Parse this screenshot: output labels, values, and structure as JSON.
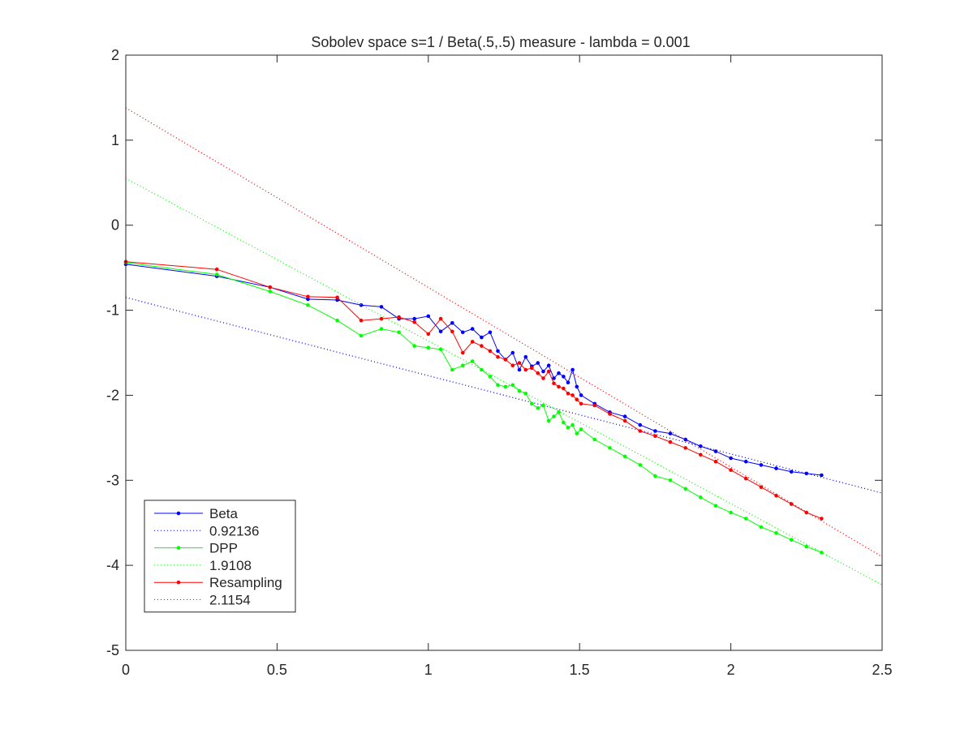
{
  "figure": {
    "background": "#ffffff",
    "axes_color": "#262626"
  },
  "chart_data": {
    "type": "line",
    "title": "Sobolev space s=1 / Beta(.5,.5) measure - lambda = 0.001",
    "xlabel": "",
    "ylabel": "",
    "xlim": [
      0,
      2.5
    ],
    "ylim": [
      -5,
      2
    ],
    "xticks": [
      0,
      0.5,
      1,
      1.5,
      2,
      2.5
    ],
    "xtick_labels": [
      "0",
      "0.5",
      "1",
      "1.5",
      "2",
      "2.5"
    ],
    "yticks": [
      2,
      1,
      0,
      -1,
      -2,
      -3,
      -4,
      -5
    ],
    "ytick_labels": [
      "2",
      "1",
      "0",
      "-1",
      "-2",
      "-3",
      "-4",
      "-5"
    ],
    "grid": false,
    "legend_position": "bottom-left",
    "series": [
      {
        "name": "Beta",
        "color": "#0000ff",
        "style": "solid-dots",
        "x": [
          0,
          0.301,
          0.477,
          0.602,
          0.699,
          0.778,
          0.845,
          0.903,
          0.954,
          1.0,
          1.041,
          1.079,
          1.114,
          1.146,
          1.176,
          1.204,
          1.23,
          1.255,
          1.279,
          1.301,
          1.322,
          1.342,
          1.362,
          1.38,
          1.398,
          1.415,
          1.431,
          1.447,
          1.462,
          1.477,
          1.491,
          1.505,
          1.55,
          1.6,
          1.65,
          1.7,
          1.75,
          1.8,
          1.85,
          1.9,
          1.95,
          2.0,
          2.05,
          2.1,
          2.15,
          2.2,
          2.25,
          2.3
        ],
        "y": [
          -0.46,
          -0.6,
          -0.73,
          -0.87,
          -0.88,
          -0.94,
          -0.96,
          -1.1,
          -1.1,
          -1.07,
          -1.25,
          -1.15,
          -1.26,
          -1.22,
          -1.32,
          -1.26,
          -1.48,
          -1.58,
          -1.5,
          -1.7,
          -1.55,
          -1.66,
          -1.62,
          -1.72,
          -1.65,
          -1.8,
          -1.74,
          -1.78,
          -1.85,
          -1.7,
          -1.9,
          -2.0,
          -2.1,
          -2.2,
          -2.25,
          -2.35,
          -2.42,
          -2.45,
          -2.52,
          -2.6,
          -2.66,
          -2.74,
          -2.78,
          -2.82,
          -2.86,
          -2.9,
          -2.92,
          -2.94
        ]
      },
      {
        "name": "0.92136",
        "color": "#0000ff",
        "style": "dotted",
        "x": [
          0,
          2.5
        ],
        "y": [
          -0.85,
          -3.15
        ]
      },
      {
        "name": "DPP",
        "color": "#00ff00",
        "style": "solid-dots",
        "x": [
          0,
          0.301,
          0.477,
          0.602,
          0.699,
          0.778,
          0.845,
          0.903,
          0.954,
          1.0,
          1.041,
          1.079,
          1.114,
          1.146,
          1.176,
          1.204,
          1.23,
          1.255,
          1.279,
          1.301,
          1.322,
          1.342,
          1.362,
          1.38,
          1.398,
          1.415,
          1.431,
          1.447,
          1.462,
          1.477,
          1.491,
          1.505,
          1.55,
          1.6,
          1.65,
          1.7,
          1.75,
          1.8,
          1.85,
          1.9,
          1.95,
          2.0,
          2.05,
          2.1,
          2.15,
          2.2,
          2.25,
          2.3
        ],
        "y": [
          -0.44,
          -0.58,
          -0.78,
          -0.94,
          -1.12,
          -1.3,
          -1.22,
          -1.26,
          -1.42,
          -1.44,
          -1.46,
          -1.7,
          -1.65,
          -1.6,
          -1.7,
          -1.78,
          -1.88,
          -1.9,
          -1.88,
          -1.95,
          -1.98,
          -2.1,
          -2.15,
          -2.12,
          -2.3,
          -2.25,
          -2.2,
          -2.32,
          -2.38,
          -2.35,
          -2.45,
          -2.4,
          -2.52,
          -2.62,
          -2.72,
          -2.82,
          -2.95,
          -3.0,
          -3.1,
          -3.2,
          -3.3,
          -3.38,
          -3.45,
          -3.55,
          -3.62,
          -3.7,
          -3.78,
          -3.85
        ]
      },
      {
        "name": "1.9108",
        "color": "#00ff00",
        "style": "dotted",
        "x": [
          0,
          2.5
        ],
        "y": [
          0.55,
          -4.23
        ]
      },
      {
        "name": "Resampling",
        "color": "#ff0000",
        "style": "solid-dots",
        "x": [
          0,
          0.301,
          0.477,
          0.602,
          0.699,
          0.778,
          0.845,
          0.903,
          0.954,
          1.0,
          1.041,
          1.079,
          1.114,
          1.146,
          1.176,
          1.204,
          1.23,
          1.255,
          1.279,
          1.301,
          1.322,
          1.342,
          1.362,
          1.38,
          1.398,
          1.415,
          1.431,
          1.447,
          1.462,
          1.477,
          1.491,
          1.505,
          1.55,
          1.6,
          1.65,
          1.7,
          1.75,
          1.8,
          1.85,
          1.9,
          1.95,
          2.0,
          2.05,
          2.1,
          2.15,
          2.2,
          2.25,
          2.3
        ],
        "y": [
          -0.43,
          -0.52,
          -0.73,
          -0.84,
          -0.85,
          -1.12,
          -1.1,
          -1.08,
          -1.14,
          -1.28,
          -1.1,
          -1.25,
          -1.5,
          -1.37,
          -1.42,
          -1.48,
          -1.55,
          -1.58,
          -1.65,
          -1.62,
          -1.7,
          -1.68,
          -1.74,
          -1.8,
          -1.72,
          -1.86,
          -1.9,
          -1.92,
          -1.98,
          -2.0,
          -2.05,
          -2.1,
          -2.12,
          -2.22,
          -2.3,
          -2.42,
          -2.48,
          -2.55,
          -2.62,
          -2.7,
          -2.78,
          -2.88,
          -2.98,
          -3.08,
          -3.18,
          -3.28,
          -3.38,
          -3.45
        ]
      },
      {
        "name": "2.1154",
        "color": "#ff0000",
        "style": "dotted",
        "x": [
          0,
          2.5
        ],
        "y": [
          1.38,
          -3.9
        ]
      }
    ]
  }
}
